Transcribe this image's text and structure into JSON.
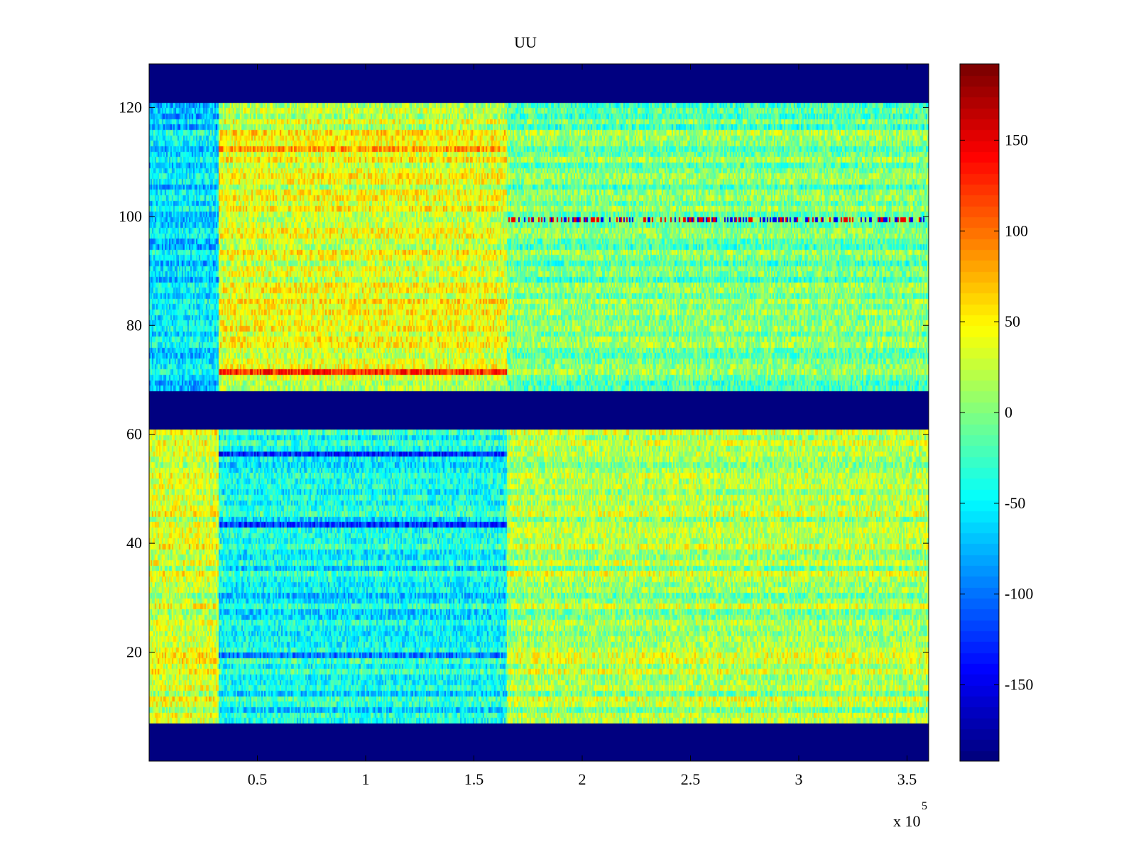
{
  "chart_data": {
    "type": "heatmap",
    "title": "UU",
    "xlabel": "",
    "ylabel": "",
    "x_exponent_label": "x 10",
    "x_exponent_power": "5",
    "xlim": [
      0,
      3.6
    ],
    "ylim": [
      0,
      128
    ],
    "xticks": [
      0.5,
      1,
      1.5,
      2,
      2.5,
      3,
      3.5
    ],
    "xtick_labels": [
      "0.5",
      "1",
      "1.5",
      "2",
      "2.5",
      "3",
      "3.5"
    ],
    "yticks": [
      20,
      40,
      60,
      80,
      100,
      120
    ],
    "ytick_labels": [
      "20",
      "40",
      "60",
      "80",
      "100",
      "120"
    ],
    "colorbar": {
      "colormap": "jet",
      "clim": [
        -192,
        192
      ],
      "ticks": [
        -150,
        -100,
        -50,
        0,
        50,
        100,
        150
      ],
      "tick_labels": [
        "-150",
        "-100",
        "-50",
        "0",
        "50",
        "100",
        "150"
      ]
    },
    "masked_row_bands": [
      {
        "rows": [
          1,
          7
        ],
        "value": -192
      },
      {
        "rows": [
          62,
          68
        ],
        "value": -192
      },
      {
        "rows": [
          122,
          128
        ],
        "value": -192
      }
    ],
    "regions": [
      {
        "x": [
          0.0,
          0.32
        ],
        "rows": [
          8,
          61
        ],
        "mean": 30
      },
      {
        "x": [
          0.32,
          1.65
        ],
        "rows": [
          8,
          61
        ],
        "mean": -45
      },
      {
        "x": [
          1.65,
          3.6
        ],
        "rows": [
          8,
          61
        ],
        "mean": 15
      },
      {
        "x": [
          0.0,
          0.32
        ],
        "rows": [
          69,
          121
        ],
        "mean": -60
      },
      {
        "x": [
          0.32,
          1.65
        ],
        "rows": [
          69,
          121
        ],
        "mean": 35
      },
      {
        "x": [
          1.65,
          3.6
        ],
        "rows": [
          69,
          121
        ],
        "mean": -5
      }
    ],
    "highlight_rows": [
      {
        "row": 100,
        "x": [
          1.65,
          3.6
        ],
        "note": "alternating red/blue streaks"
      },
      {
        "row": 57,
        "x": [
          0.32,
          1.65
        ],
        "mean": -140
      },
      {
        "row": 44,
        "x": [
          0.32,
          1.65
        ],
        "mean": -130
      },
      {
        "row": 20,
        "x": [
          0.32,
          1.65
        ],
        "mean": -120
      },
      {
        "row": 72,
        "x": [
          0.32,
          1.65
        ],
        "mean": 110
      },
      {
        "row": 113,
        "x": [
          0.32,
          1.65
        ],
        "mean": 100
      }
    ],
    "grid": false,
    "legend": "colorbar-right"
  },
  "colors": {
    "masked": "#000088",
    "axes": "#000000",
    "background": "#ffffff"
  }
}
